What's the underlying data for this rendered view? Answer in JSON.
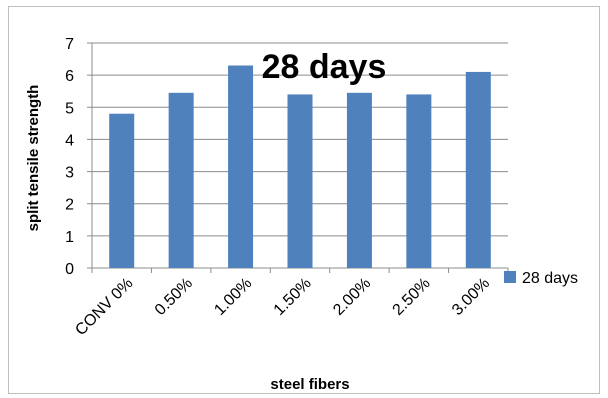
{
  "chart_data": {
    "type": "bar",
    "title": "28 days",
    "xlabel": "steel fibers",
    "ylabel": "split tensile strength",
    "categories": [
      "CONV 0%",
      "0.50%",
      "1.00%",
      "1.50%",
      "2.00%",
      "2.50%",
      "3.00%"
    ],
    "series": [
      {
        "name": "28 days",
        "values": [
          4.8,
          5.45,
          6.3,
          5.4,
          5.45,
          5.4,
          6.1
        ]
      }
    ],
    "ylim": [
      0,
      7
    ],
    "yticks": [
      "0",
      "1",
      "2",
      "3",
      "4",
      "5",
      "6",
      "7"
    ],
    "grid": true,
    "legend_position": "right",
    "colors": {
      "bar": "#4f81bd",
      "grid": "#8c8c8c",
      "axis": "#8c8c8c"
    }
  }
}
